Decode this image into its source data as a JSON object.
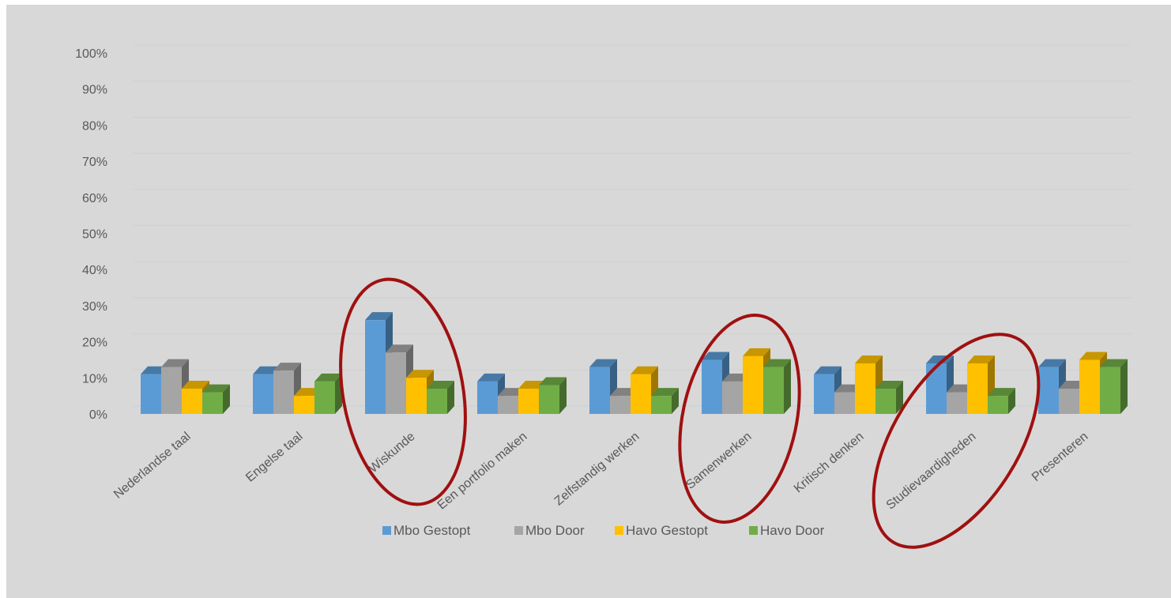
{
  "chart_data": {
    "type": "bar",
    "style": "3d-clustered-column",
    "categories": [
      "Nederlandse taal",
      "Engelse taal",
      "Wiskunde",
      "Een portfolio maken",
      "Zelfstandig werken",
      "Samenwerken",
      "Kritisch denken",
      "Studievaardigheden",
      "Presenteren"
    ],
    "series": [
      {
        "name": "Mbo Gestopt",
        "color": "#5b9bd5",
        "values": [
          11,
          11,
          26,
          9,
          13,
          15,
          11,
          14,
          13
        ]
      },
      {
        "name": "Mbo Door",
        "color": "#a5a5a5",
        "values": [
          13,
          12,
          17,
          5,
          5,
          9,
          6,
          6,
          7
        ]
      },
      {
        "name": "Havo Gestopt",
        "color": "#ffc000",
        "values": [
          7,
          5,
          10,
          7,
          11,
          16,
          14,
          14,
          15
        ]
      },
      {
        "name": "Havo Door",
        "color": "#70ad47",
        "values": [
          6,
          9,
          7,
          8,
          5,
          13,
          7,
          5,
          13
        ]
      }
    ],
    "ylim": [
      0,
      100
    ],
    "yticks": [
      "0%",
      "10%",
      "20%",
      "30%",
      "40%",
      "50%",
      "60%",
      "70%",
      "80%",
      "90%",
      "100%"
    ],
    "title": "",
    "xlabel": "",
    "ylabel": "",
    "grid": true,
    "legend_position": "bottom",
    "annotations": [
      {
        "type": "ellipse",
        "color": "#a01010",
        "highlights": "Wiskunde"
      },
      {
        "type": "ellipse",
        "color": "#a01010",
        "highlights": "Samenwerken"
      },
      {
        "type": "ellipse",
        "color": "#a01010",
        "highlights": "Studievaardigheden"
      }
    ]
  }
}
